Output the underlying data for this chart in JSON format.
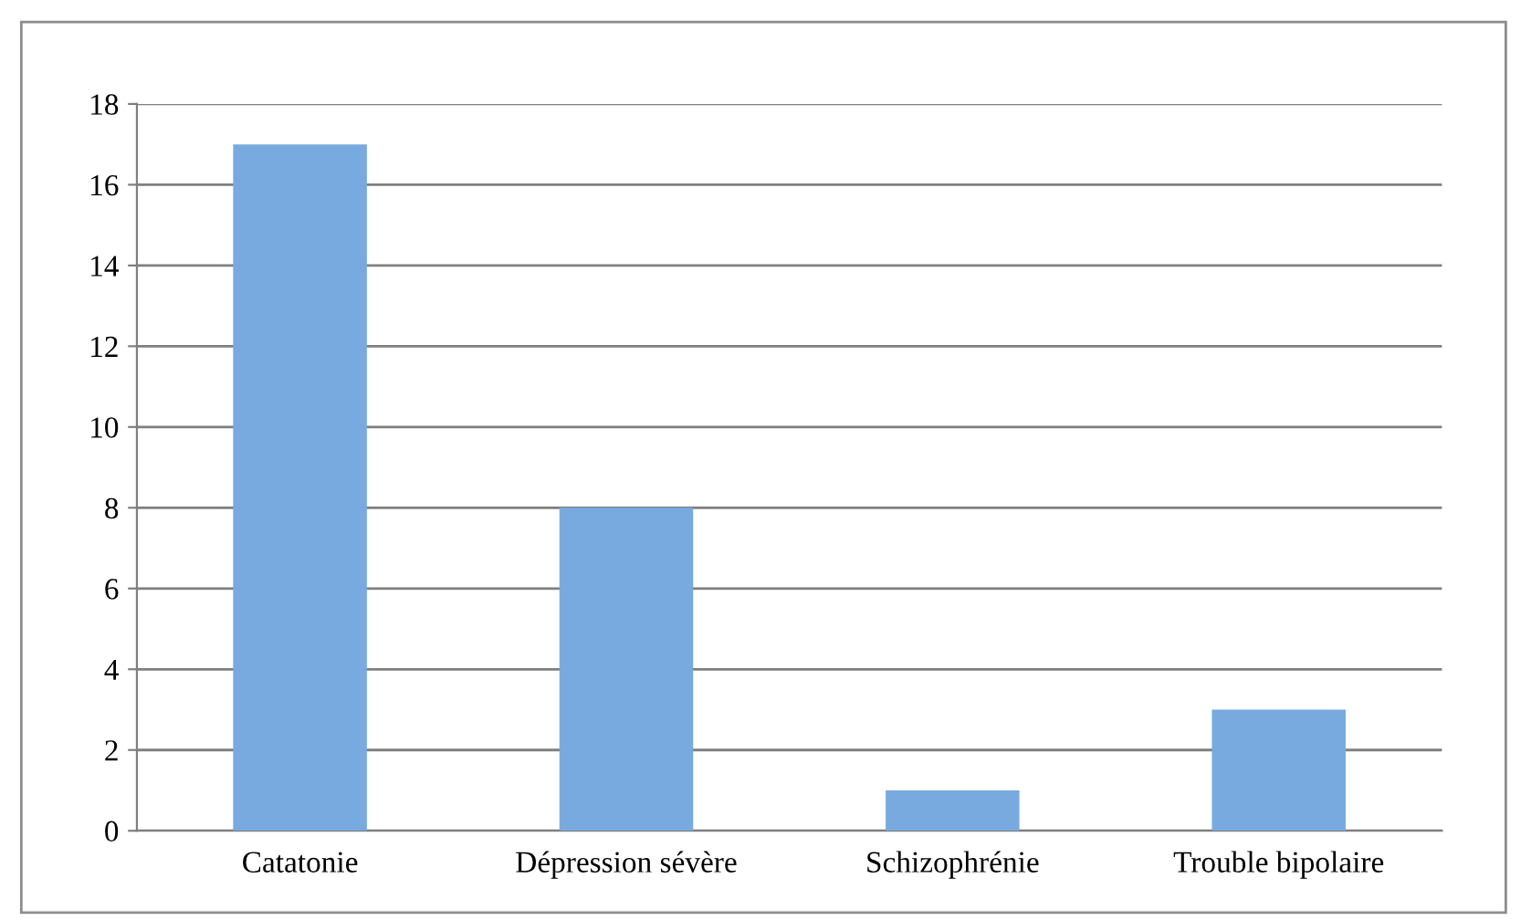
{
  "chart_data": {
    "type": "bar",
    "categories": [
      "Catatonie",
      "Dépression sévère",
      "Schizophrénie",
      "Trouble bipolaire"
    ],
    "values": [
      17,
      8,
      1,
      3
    ],
    "color": "#78aadf",
    "ylim": [
      0,
      18
    ],
    "yticks": [
      0,
      2,
      4,
      6,
      8,
      10,
      12,
      14,
      16,
      18
    ],
    "grid": "y",
    "legend": false
  }
}
